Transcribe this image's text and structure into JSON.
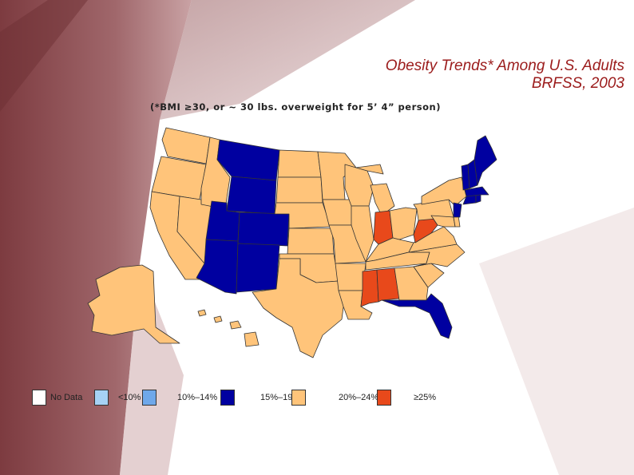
{
  "title": {
    "line1": "Obesity Trends* Among U.S. Adults",
    "line2": "BRFSS, 2003"
  },
  "subtitle": "(*BMI ≥30, or ~ 30 lbs. overweight for 5’ 4” person)",
  "colors": {
    "no_data": "#ffffff",
    "lt10": "#a6d2f5",
    "10_14": "#6fa8ea",
    "15_19": "#0000a0",
    "20_24": "#ffc47a",
    "gte25": "#e8491b",
    "title": "#9b1b1b",
    "background_maroon": "#8c4a4e"
  },
  "legend": [
    {
      "label": "No Data",
      "color_key": "no_data"
    },
    {
      "label": "<10%",
      "color_key": "lt10"
    },
    {
      "label": "10%–14%",
      "color_key": "10_14"
    },
    {
      "label": "15%–19%",
      "color_key": "15_19"
    },
    {
      "label": "20%–24%",
      "color_key": "20_24"
    },
    {
      "label": "≥25%",
      "color_key": "gte25"
    }
  ],
  "states": {
    "15_19": [
      "MT",
      "WY",
      "UT",
      "CO",
      "AZ",
      "NM",
      "FL",
      "ME",
      "NH",
      "VT",
      "MA",
      "RI",
      "CT",
      "NJ"
    ],
    "20_24": [
      "WA",
      "OR",
      "CA",
      "NV",
      "ID",
      "ND",
      "SD",
      "NE",
      "KS",
      "OK",
      "TX",
      "MN",
      "IA",
      "MO",
      "AR",
      "LA",
      "WI",
      "IL",
      "MI",
      "OH",
      "KY",
      "TN",
      "GA",
      "SC",
      "NC",
      "VA",
      "PA",
      "NY",
      "MD",
      "DE",
      "AK",
      "HI"
    ],
    "gte25": [
      "IN",
      "WV",
      "MS",
      "AL"
    ]
  }
}
